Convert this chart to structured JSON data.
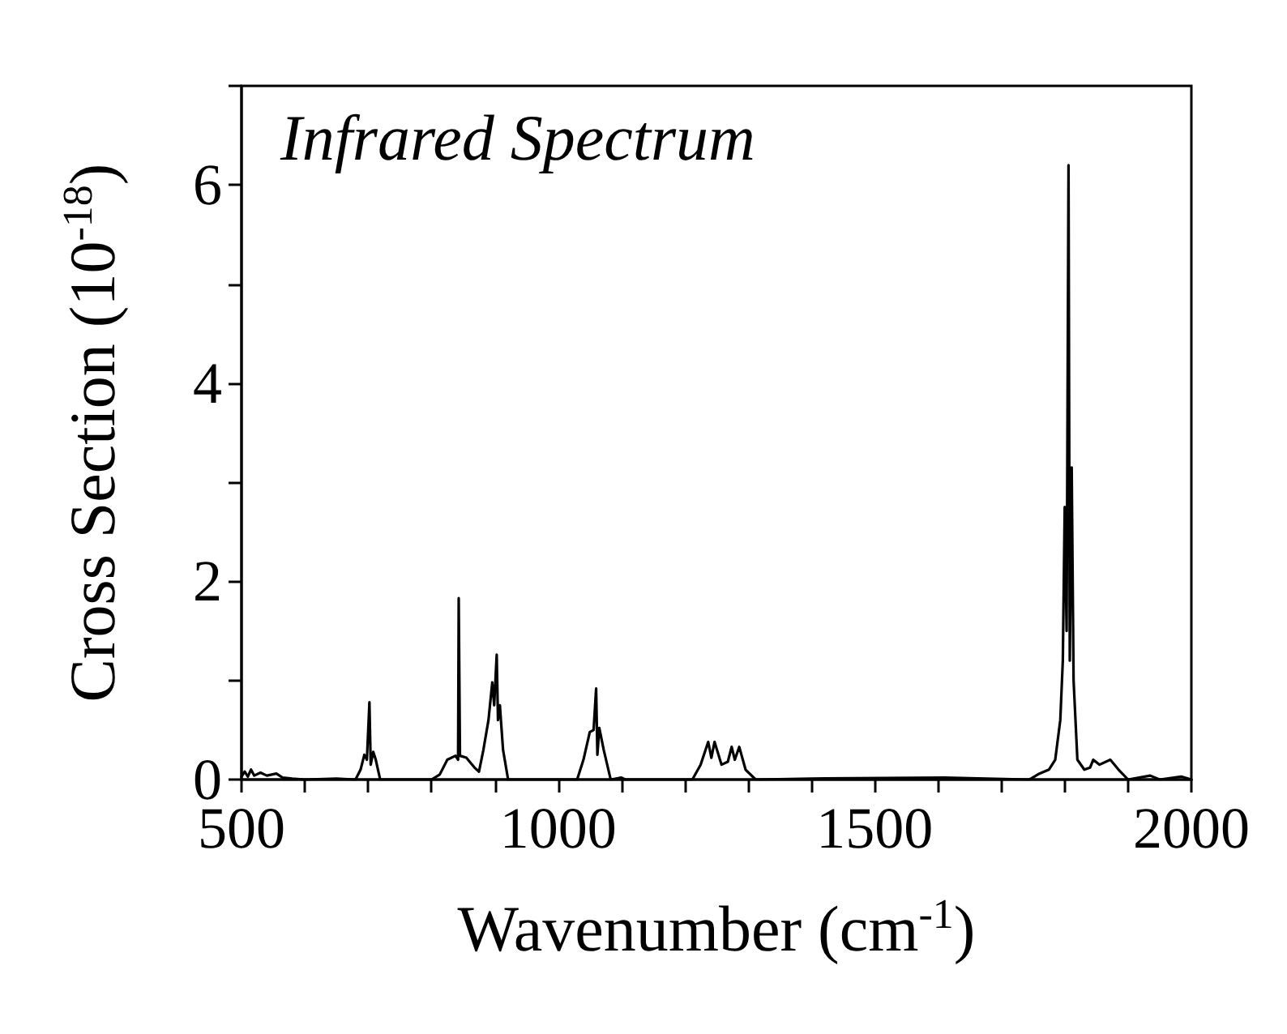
{
  "chart_data": {
    "type": "line",
    "title": "Infrared Spectrum",
    "xlabel": "Wavenumber (cm$^{-1}$)",
    "ylabel": "Cross Section (10$^{-18}$)",
    "x": [
      500,
      505,
      510,
      515,
      520,
      530,
      540,
      555,
      565,
      580,
      600,
      650,
      680,
      688,
      694,
      698,
      702,
      704,
      708,
      712,
      719,
      800,
      813,
      825,
      838,
      842,
      843,
      845,
      855,
      868,
      875,
      882,
      890,
      896,
      899,
      903,
      905,
      908,
      913,
      921,
      1030,
      1040,
      1050,
      1056,
      1060,
      1062,
      1065,
      1072,
      1083,
      1100,
      1106,
      1212,
      1225,
      1237,
      1242,
      1247,
      1258,
      1268,
      1274,
      1279,
      1286,
      1296,
      1312,
      1400,
      1610,
      1744,
      1760,
      1775,
      1785,
      1793,
      1797,
      1800,
      1803,
      1806,
      1808,
      1811,
      1814,
      1820,
      1831,
      1840,
      1845,
      1855,
      1872,
      1885,
      1900,
      1935,
      1950,
      1984,
      2000
    ],
    "series": [
      {
        "color": "#000000",
        "values": [
          0.03,
          0.08,
          0.03,
          0.1,
          0.04,
          0.07,
          0.04,
          0.06,
          0.02,
          0.01,
          0.0,
          0.01,
          0.0,
          0.1,
          0.25,
          0.2,
          0.78,
          0.15,
          0.28,
          0.2,
          0.0,
          0.0,
          0.05,
          0.2,
          0.24,
          0.2,
          1.83,
          0.24,
          0.22,
          0.12,
          0.08,
          0.3,
          0.6,
          0.98,
          0.75,
          1.26,
          0.6,
          0.75,
          0.3,
          0.0,
          0.0,
          0.2,
          0.48,
          0.5,
          0.92,
          0.25,
          0.52,
          0.3,
          0.0,
          0.02,
          0.0,
          0.0,
          0.15,
          0.38,
          0.22,
          0.38,
          0.15,
          0.18,
          0.33,
          0.2,
          0.33,
          0.1,
          0.0,
          0.01,
          0.02,
          0.0,
          0.06,
          0.1,
          0.2,
          0.6,
          1.2,
          2.75,
          1.5,
          6.2,
          1.2,
          3.15,
          1.0,
          0.2,
          0.1,
          0.12,
          0.2,
          0.15,
          0.2,
          0.1,
          0.0,
          0.04,
          0.0,
          0.03,
          0.0
        ]
      }
    ],
    "xlim": [
      500,
      2000
    ],
    "xticks": [
      500,
      {
        "value": 600,
        "label": null
      },
      {
        "value": 700,
        "label": null
      },
      {
        "value": 800,
        "label": null
      },
      {
        "value": 900,
        "label": null
      },
      1000,
      {
        "value": 1100,
        "label": null
      },
      {
        "value": 1200,
        "label": null
      },
      {
        "value": 1300,
        "label": null
      },
      {
        "value": 1400,
        "label": null
      },
      1500,
      {
        "value": 1600,
        "label": null
      },
      {
        "value": 1700,
        "label": null
      },
      {
        "value": 1800,
        "label": null
      },
      {
        "value": 1900,
        "label": null
      },
      2000
    ],
    "ylim": [
      0,
      7
    ],
    "yticks": [
      0,
      {
        "value": 1,
        "label": null
      },
      2,
      {
        "value": 3,
        "label": null
      },
      4,
      {
        "value": 5,
        "label": null
      },
      6,
      {
        "value": 7,
        "label": null
      }
    ],
    "grid": false,
    "marker": "none",
    "line_style": "solid"
  }
}
